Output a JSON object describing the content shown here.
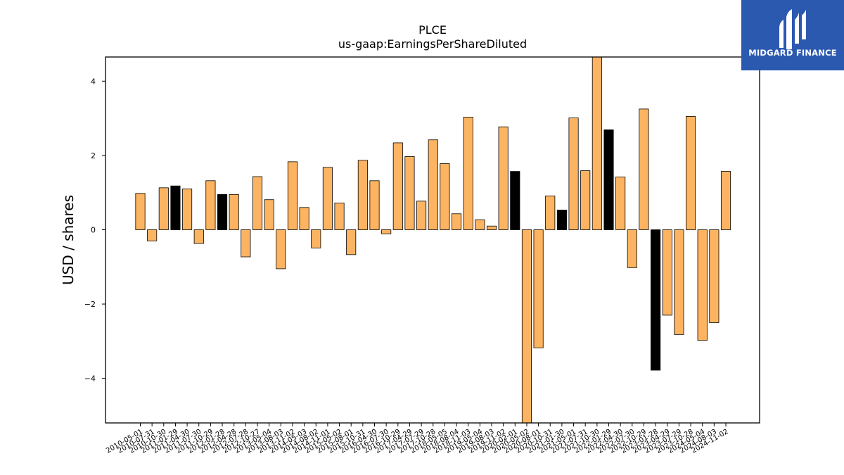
{
  "brand": {
    "name": "MIDGARD FINANCE",
    "bg": "#2b59b0",
    "fg": "#ffffff"
  },
  "chart_data": {
    "type": "bar",
    "title": "PLCE",
    "subtitle": "us-gaap:EarningsPerShareDiluted",
    "xlabel": "",
    "ylabel": "USD / shares",
    "ylim": [
      -5.2,
      4.65
    ],
    "yticks": [
      -4,
      -2,
      0,
      2,
      4
    ],
    "ytick_labels": [
      "−4",
      "−2",
      "0",
      "2",
      "4"
    ],
    "colors": {
      "quarterly": "#fdb462",
      "annual": "#000000",
      "edge": "#000000"
    },
    "categories": [
      "2010-05-01",
      "2010-07-31",
      "2010-10-30",
      "2011-01-29",
      "2011-04-30",
      "2011-07-30",
      "2011-10-29",
      "2012-01-28",
      "2012-04-28",
      "2012-07-28",
      "2012-10-27",
      "2013-05-04",
      "2013-08-03",
      "2013-11-02",
      "2014-05-03",
      "2014-08-02",
      "2014-11-01",
      "2015-05-02",
      "2015-08-01",
      "2015-10-31",
      "2016-04-30",
      "2016-07-30",
      "2016-10-29",
      "2017-04-29",
      "2017-07-29",
      "2017-10-28",
      "2018-05-05",
      "2018-08-04",
      "2018-11-03",
      "2019-05-04",
      "2019-08-03",
      "2019-11-02",
      "2020-02-01",
      "2020-05-02",
      "2020-08-01",
      "2020-10-31",
      "2021-01-30",
      "2021-05-01",
      "2021-07-31",
      "2021-10-30",
      "2022-01-29",
      "2022-04-30",
      "2022-07-30",
      "2022-10-29",
      "2023-01-28",
      "2023-04-29",
      "2023-07-29",
      "2023-10-28",
      "2024-05-04",
      "2024-08-03",
      "2024-11-02"
    ],
    "values": [
      0.98,
      -0.3,
      1.13,
      1.18,
      1.1,
      -0.37,
      1.32,
      0.95,
      0.95,
      -0.73,
      1.43,
      0.81,
      -1.05,
      1.83,
      0.6,
      -0.49,
      1.68,
      0.72,
      -0.67,
      1.87,
      1.32,
      -0.11,
      2.34,
      1.97,
      0.77,
      2.42,
      1.78,
      0.43,
      3.03,
      0.27,
      0.1,
      2.77,
      1.57,
      -5.2,
      -3.18,
      0.91,
      0.53,
      3.01,
      1.59,
      4.65,
      2.69,
      1.42,
      -1.02,
      3.25,
      -3.78,
      -2.3,
      -2.82,
      3.05,
      -2.98,
      -2.5,
      1.57
    ],
    "annual": [
      false,
      false,
      false,
      true,
      false,
      false,
      false,
      true,
      false,
      false,
      false,
      false,
      false,
      false,
      false,
      false,
      false,
      false,
      false,
      false,
      false,
      false,
      false,
      false,
      false,
      false,
      false,
      false,
      false,
      false,
      false,
      false,
      true,
      false,
      false,
      false,
      true,
      false,
      false,
      false,
      true,
      false,
      false,
      false,
      true,
      false,
      false,
      false,
      false,
      false,
      false
    ],
    "grid": false,
    "legend": "none"
  }
}
